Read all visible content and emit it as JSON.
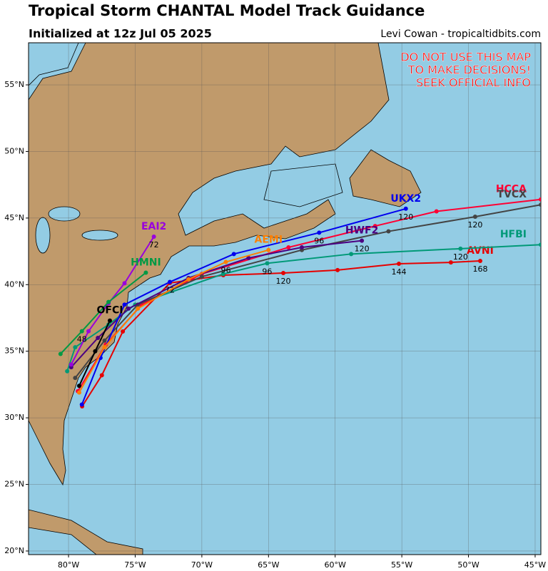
{
  "header": {
    "title": "Tropical Storm CHANTAL Model Track Guidance",
    "subtitle": "Initialized at 12z Jul 05 2025",
    "credit": "Levi Cowan - tropicaltidbits.com"
  },
  "warning": [
    "DO NOT USE THIS MAP",
    "TO MAKE DECISIONS!",
    "SEEK OFFICIAL INFO"
  ],
  "map": {
    "xlim": [
      -83,
      -44.57
    ],
    "ylim": [
      19.73,
      58.16
    ],
    "xticks": [
      {
        "value": -80,
        "label": "80°W"
      },
      {
        "value": -75,
        "label": "75°W"
      },
      {
        "value": -70,
        "label": "70°W"
      },
      {
        "value": -65,
        "label": "65°W"
      },
      {
        "value": -60,
        "label": "60°W"
      },
      {
        "value": -55,
        "label": "55°W"
      },
      {
        "value": -50,
        "label": "50°W"
      },
      {
        "value": -45,
        "label": "45°W"
      }
    ],
    "yticks": [
      {
        "value": 20,
        "label": "20°N"
      },
      {
        "value": 25,
        "label": "25°N"
      },
      {
        "value": 30,
        "label": "30°N"
      },
      {
        "value": 35,
        "label": "35°N"
      },
      {
        "value": 40,
        "label": "40°N"
      },
      {
        "value": 45,
        "label": "45°N"
      },
      {
        "value": 50,
        "label": "50°N"
      },
      {
        "value": 55,
        "label": "55°N"
      }
    ],
    "tracks": [
      {
        "name": "AVNI",
        "color": "#e60000",
        "lon": [
          -78.98,
          -77.5,
          -75.93,
          -72.4,
          -68.39,
          -63.89,
          -59.82,
          -55.22,
          -51.32,
          -49.12
        ],
        "lat": [
          30.86,
          33.2,
          36.48,
          40.12,
          40.71,
          40.87,
          41.09,
          41.57,
          41.67,
          41.78
        ],
        "hours": [
          null,
          null,
          null,
          null,
          null,
          120,
          null,
          144,
          null,
          168
        ]
      },
      {
        "name": "HFBI",
        "color": "#009977",
        "lon": [
          -80.1,
          -79.5,
          -77.0,
          -75.0,
          -68.4,
          -65.1,
          -58.8,
          -50.6,
          -44.57
        ],
        "lat": [
          33.5,
          35.3,
          37.0,
          38.5,
          40.8,
          41.6,
          42.3,
          42.7,
          43.0
        ],
        "hours": [
          null,
          null,
          null,
          null,
          null,
          96,
          null,
          120,
          null
        ]
      },
      {
        "name": "HCCA",
        "color": "#ff0033",
        "lon": [
          -79.3,
          -77.2,
          -74.5,
          -70.0,
          -63.5,
          -57.0,
          -52.4,
          -44.57
        ],
        "lat": [
          32.0,
          35.5,
          38.5,
          40.8,
          42.8,
          44.4,
          45.5,
          46.4
        ],
        "hours": [
          null,
          null,
          null,
          null,
          null,
          null,
          null,
          null
        ]
      },
      {
        "name": "TVCX",
        "color": "#444444",
        "lon": [
          -79.5,
          -77.3,
          -74.8,
          -70.0,
          -62.5,
          -56.0,
          -49.5,
          -44.57
        ],
        "lat": [
          33.0,
          35.8,
          38.5,
          40.6,
          42.6,
          44.0,
          45.1,
          46.0
        ],
        "hours": [
          null,
          null,
          null,
          null,
          null,
          null,
          120,
          null
        ]
      },
      {
        "name": "HWF2",
        "color": "#4b0082",
        "lon": [
          -79.8,
          -77.8,
          -75.5,
          -71.0,
          -66.5,
          -62.5,
          -58.0
        ],
        "lat": [
          33.8,
          36.0,
          38.2,
          40.5,
          42.0,
          42.8,
          43.3
        ],
        "hours": [
          null,
          null,
          null,
          null,
          null,
          null,
          120
        ]
      },
      {
        "name": "UKX2",
        "color": "#0000ee",
        "lon": [
          -79.0,
          -77.6,
          -75.8,
          -72.4,
          -67.6,
          -61.2,
          -54.7
        ],
        "lat": [
          31.0,
          34.5,
          38.5,
          40.2,
          42.3,
          43.9,
          45.7
        ],
        "hours": [
          null,
          null,
          null,
          72,
          null,
          96,
          120
        ]
      },
      {
        "name": "AEMI",
        "color": "#ff7f00",
        "lon": [
          -79.2,
          -77.3,
          -74.8,
          -71.0,
          -68.2,
          -65.0
        ],
        "lat": [
          31.9,
          35.3,
          38.2,
          40.4,
          41.7,
          42.6
        ],
        "hours": [
          null,
          null,
          null,
          null,
          96,
          null
        ]
      },
      {
        "name": "EAI2",
        "color": "#9900dd",
        "lon": [
          -79.8,
          -78.5,
          -77.0,
          -75.8,
          -73.6
        ],
        "lat": [
          34.0,
          36.5,
          38.6,
          40.1,
          43.6
        ],
        "hours": [
          null,
          null,
          null,
          null,
          72
        ]
      },
      {
        "name": "HMNI",
        "color": "#009944",
        "lon": [
          -80.6,
          -79.0,
          -77.0,
          -74.2
        ],
        "lat": [
          34.8,
          36.5,
          38.7,
          40.9
        ],
        "hours": [
          null,
          48,
          null,
          null
        ]
      },
      {
        "name": "OFCI",
        "color": "#000000",
        "lon": [
          -79.2,
          -78.0,
          -76.9
        ],
        "lat": [
          32.4,
          35.0,
          37.3
        ],
        "hours": [
          null,
          null,
          null
        ]
      }
    ]
  }
}
